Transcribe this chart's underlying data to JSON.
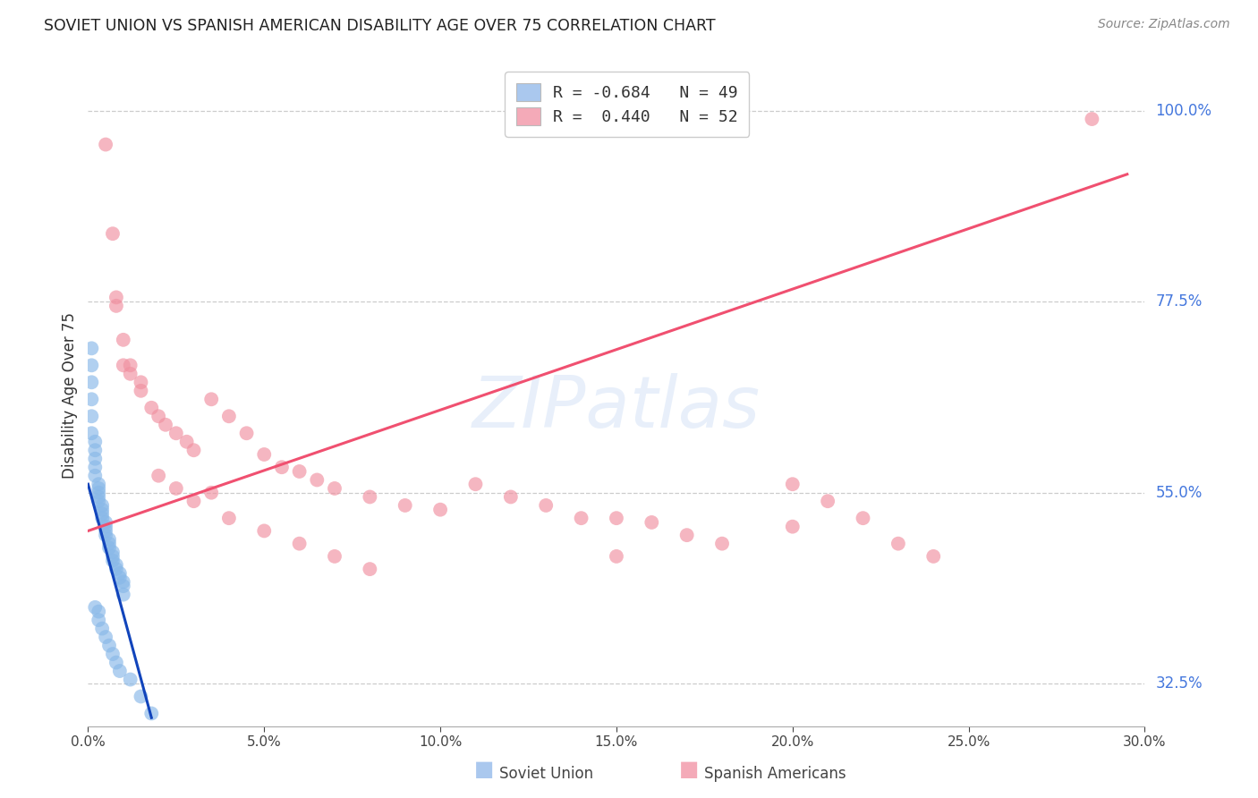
{
  "title": "SOVIET UNION VS SPANISH AMERICAN DISABILITY AGE OVER 75 CORRELATION CHART",
  "source": "Source: ZipAtlas.com",
  "ylabel": "Disability Age Over 75",
  "xmin": 0.0,
  "xmax": 0.3,
  "ymin": 0.275,
  "ymax": 1.055,
  "ytick_values": [
    1.0,
    0.775,
    0.55,
    0.325
  ],
  "ytick_labels": [
    "100.0%",
    "77.5%",
    "55.0%",
    "32.5%"
  ],
  "xtick_values": [
    0.0,
    0.05,
    0.1,
    0.15,
    0.2,
    0.25,
    0.3
  ],
  "xtick_labels": [
    "0.0%",
    "5.0%",
    "10.0%",
    "15.0%",
    "20.0%",
    "25.0%",
    "30.0%"
  ],
  "watermark": "ZIPatlas",
  "soviet_color": "#88b8e8",
  "spanish_color": "#f090a0",
  "soviet_line_color": "#1144bb",
  "spanish_line_color": "#f05070",
  "soviet_legend_color": "#aac8ee",
  "spanish_legend_color": "#f4aab8",
  "background_color": "#ffffff",
  "grid_color": "#cccccc",
  "title_color": "#222222",
  "source_color": "#888888",
  "axis_label_color": "#333333",
  "right_tick_color": "#4477dd",
  "bottom_legend_color": "#444444",
  "soviet_x": [
    0.001,
    0.001,
    0.001,
    0.001,
    0.002,
    0.002,
    0.002,
    0.002,
    0.002,
    0.003,
    0.003,
    0.003,
    0.003,
    0.003,
    0.004,
    0.004,
    0.004,
    0.004,
    0.005,
    0.005,
    0.005,
    0.005,
    0.006,
    0.006,
    0.006,
    0.007,
    0.007,
    0.007,
    0.008,
    0.008,
    0.009,
    0.009,
    0.01,
    0.01,
    0.01,
    0.001,
    0.001,
    0.002,
    0.003,
    0.003,
    0.004,
    0.005,
    0.006,
    0.007,
    0.008,
    0.009,
    0.012,
    0.015,
    0.018
  ],
  "soviet_y": [
    0.68,
    0.66,
    0.64,
    0.62,
    0.61,
    0.6,
    0.59,
    0.58,
    0.57,
    0.56,
    0.555,
    0.55,
    0.545,
    0.54,
    0.535,
    0.53,
    0.525,
    0.52,
    0.515,
    0.51,
    0.505,
    0.5,
    0.495,
    0.49,
    0.485,
    0.48,
    0.475,
    0.47,
    0.465,
    0.46,
    0.455,
    0.45,
    0.445,
    0.44,
    0.43,
    0.7,
    0.72,
    0.415,
    0.41,
    0.4,
    0.39,
    0.38,
    0.37,
    0.36,
    0.35,
    0.34,
    0.33,
    0.31,
    0.29
  ],
  "soviet_line_x": [
    0.0,
    0.018
  ],
  "soviet_line_y": [
    0.56,
    0.285
  ],
  "spanish_x": [
    0.005,
    0.008,
    0.01,
    0.012,
    0.015,
    0.018,
    0.02,
    0.022,
    0.025,
    0.028,
    0.03,
    0.035,
    0.04,
    0.045,
    0.05,
    0.055,
    0.06,
    0.065,
    0.07,
    0.08,
    0.09,
    0.1,
    0.11,
    0.12,
    0.13,
    0.14,
    0.15,
    0.16,
    0.17,
    0.18,
    0.2,
    0.21,
    0.22,
    0.23,
    0.008,
    0.01,
    0.012,
    0.015,
    0.02,
    0.025,
    0.03,
    0.035,
    0.04,
    0.05,
    0.06,
    0.07,
    0.08,
    0.15,
    0.2,
    0.24,
    0.007,
    0.285
  ],
  "spanish_y": [
    0.96,
    0.78,
    0.73,
    0.7,
    0.67,
    0.65,
    0.64,
    0.63,
    0.62,
    0.61,
    0.6,
    0.66,
    0.64,
    0.62,
    0.595,
    0.58,
    0.575,
    0.565,
    0.555,
    0.545,
    0.535,
    0.53,
    0.56,
    0.545,
    0.535,
    0.52,
    0.52,
    0.515,
    0.5,
    0.49,
    0.56,
    0.54,
    0.52,
    0.49,
    0.77,
    0.7,
    0.69,
    0.68,
    0.57,
    0.555,
    0.54,
    0.55,
    0.52,
    0.505,
    0.49,
    0.475,
    0.46,
    0.475,
    0.51,
    0.475,
    0.855,
    0.99
  ],
  "spanish_line_x": [
    0.0,
    0.295
  ],
  "spanish_line_y": [
    0.505,
    0.925
  ]
}
